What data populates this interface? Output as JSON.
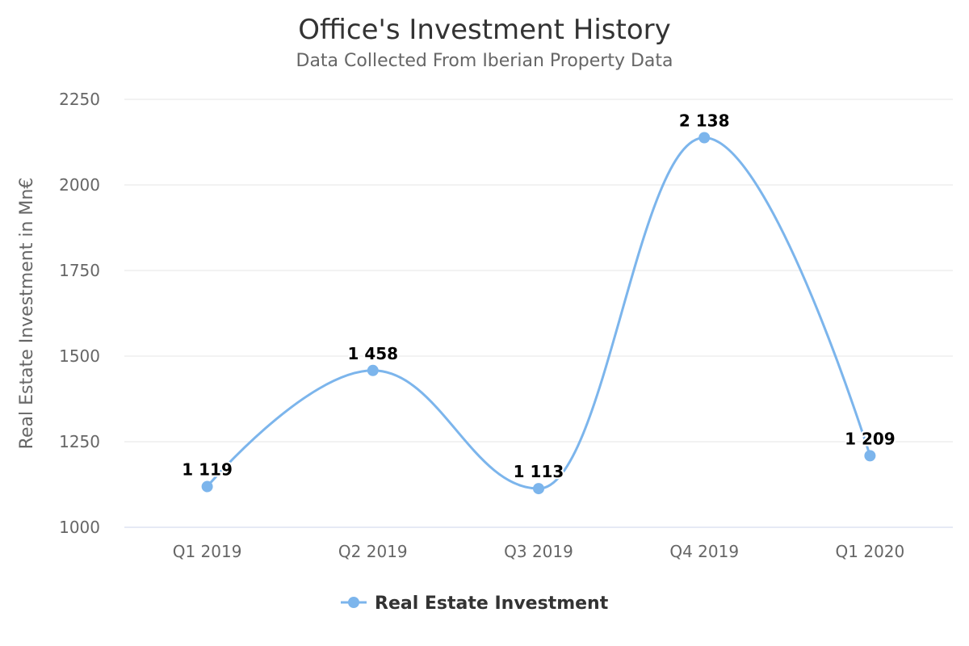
{
  "chart_data": {
    "type": "line",
    "smooth": true,
    "title": "Office's Investment History",
    "subtitle": "Data Collected From Iberian Property Data",
    "xlabel": "",
    "ylabel": "Real Estate Investment in Mn€",
    "categories": [
      "Q1 2019",
      "Q2 2019",
      "Q3 2019",
      "Q4 2019",
      "Q1 2020"
    ],
    "ylim": [
      1000,
      2250
    ],
    "yticks": [
      1000,
      1250,
      1500,
      1750,
      2000,
      2250
    ],
    "grid": true,
    "legend_position": "bottom",
    "series": [
      {
        "name": "Real Estate Investment",
        "values": [
          1119,
          1458,
          1113,
          2138,
          1209
        ],
        "data_labels": [
          "1 119",
          "1 458",
          "1 113",
          "2 138",
          "1 209"
        ],
        "color": "#7cb5ec"
      }
    ]
  }
}
